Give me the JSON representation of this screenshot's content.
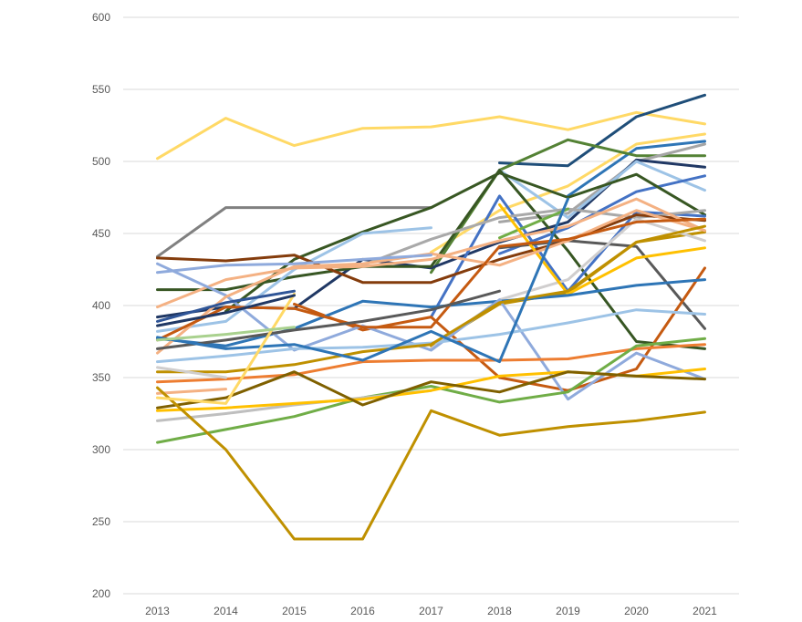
{
  "chart_data": {
    "type": "line",
    "title": "",
    "xlabel": "",
    "ylabel": "",
    "ylim": [
      200,
      600
    ],
    "yticks": [
      200,
      250,
      300,
      350,
      400,
      450,
      500,
      550,
      600
    ],
    "ytick_labels": [
      "200",
      "250",
      "300",
      "350",
      "400",
      "450",
      "500",
      "550",
      "600"
    ],
    "x": [
      "2013",
      "2014",
      "2015",
      "2016",
      "2017",
      "2018",
      "2019",
      "2020",
      "2021"
    ],
    "grid": true,
    "legend": "none",
    "series": [
      {
        "color": "#ffd966",
        "values": [
          502,
          530,
          511,
          523,
          524,
          531,
          522,
          534,
          526
        ]
      },
      {
        "color": "#808080",
        "values": [
          434,
          468,
          468,
          468,
          468,
          null,
          null,
          null,
          null
        ]
      },
      {
        "color": "#1f4e79",
        "values": [
          null,
          null,
          null,
          null,
          null,
          499,
          497,
          531,
          546
        ]
      },
      {
        "color": "#ffd966",
        "values": [
          null,
          null,
          null,
          null,
          437,
          466,
          483,
          512,
          519
        ]
      },
      {
        "color": "#2e75b6",
        "values": [
          null,
          null,
          null,
          null,
          null,
          null,
          476,
          509,
          514
        ]
      },
      {
        "color": "#548235",
        "values": [
          null,
          null,
          null,
          null,
          423,
          494,
          515,
          504,
          504
        ]
      },
      {
        "color": "#a5a5a5",
        "values": [
          null,
          null,
          null,
          null,
          null,
          458,
          464,
          500,
          512
        ]
      },
      {
        "color": "#203864",
        "values": [
          392,
          399,
          398,
          432,
          426,
          444,
          458,
          501,
          496
        ]
      },
      {
        "color": "#9dc3e6",
        "values": [
          null,
          null,
          null,
          null,
          null,
          494,
          461,
          500,
          480
        ]
      },
      {
        "color": "#4472c4",
        "values": [
          null,
          null,
          null,
          null,
          null,
          436,
          454,
          479,
          490
        ]
      },
      {
        "color": "#375623",
        "values": [
          411,
          411,
          420,
          427,
          427,
          494,
          438,
          375,
          370
        ]
      },
      {
        "color": "#385723",
        "values": [
          null,
          396,
          432,
          451,
          468,
          492,
          475,
          491,
          463
        ]
      },
      {
        "color": "#4472c4",
        "values": [
          null,
          null,
          null,
          null,
          392,
          476,
          410,
          465,
          462
        ]
      },
      {
        "color": "#595959",
        "values": [
          null,
          null,
          null,
          null,
          null,
          440,
          445,
          441,
          384
        ]
      },
      {
        "color": "#c55a11",
        "values": [
          null,
          null,
          401,
          383,
          392,
          350,
          341,
          356,
          426
        ]
      },
      {
        "color": "#9dc3e6",
        "values": [
          382,
          389,
          425,
          450,
          454,
          null,
          null,
          null,
          null
        ]
      },
      {
        "color": "#a9a9a9",
        "values": [
          null,
          null,
          null,
          428,
          446,
          461,
          467,
          461,
          466
        ]
      },
      {
        "color": "#843c0c",
        "values": [
          433,
          431,
          435,
          416,
          416,
          432,
          445,
          463,
          459
        ]
      },
      {
        "color": "#f4b183",
        "values": [
          399,
          418,
          426,
          427,
          432,
          445,
          455,
          474,
          452
        ]
      },
      {
        "color": "#70ad47",
        "values": [
          null,
          null,
          null,
          null,
          null,
          447,
          467,
          null,
          null
        ]
      },
      {
        "color": "#bf9000",
        "values": [
          null,
          null,
          null,
          null,
          372,
          401,
          409,
          444,
          451
        ]
      },
      {
        "color": "#d0cece",
        "values": [
          null,
          null,
          null,
          null,
          370,
          404,
          418,
          460,
          445
        ]
      },
      {
        "color": "#ffc000",
        "values": [
          null,
          null,
          null,
          null,
          null,
          470,
          408,
          433,
          440
        ]
      },
      {
        "color": "#2e75b6",
        "values": [
          377,
          372,
          384,
          403,
          399,
          403,
          407,
          414,
          418
        ]
      },
      {
        "color": "#8faadc",
        "values": [
          429,
          407,
          369,
          386,
          369,
          404,
          335,
          367,
          349
        ]
      },
      {
        "color": "#9dc3e6",
        "values": [
          361,
          365,
          370,
          371,
          374,
          380,
          388,
          397,
          394
        ]
      },
      {
        "color": "#f4b183",
        "values": [
          367,
          406,
          427,
          429,
          436,
          428,
          445,
          466,
          452
        ]
      },
      {
        "color": "#c55a11",
        "values": [
          376,
          399,
          398,
          385,
          385,
          441,
          446,
          458,
          460
        ]
      },
      {
        "color": "#ed7d31",
        "values": [
          347,
          349,
          352,
          361,
          362,
          362,
          363,
          370,
          373
        ]
      },
      {
        "color": "#bf9000",
        "values": [
          354,
          354,
          359,
          368,
          373,
          402,
          410,
          444,
          455
        ]
      },
      {
        "color": "#f4b183",
        "values": [
          339,
          342,
          null,
          null,
          null,
          null,
          null,
          null,
          null
        ]
      },
      {
        "color": "#2f5597",
        "values": [
          389,
          402,
          410,
          null,
          null,
          null,
          null,
          null,
          null
        ]
      },
      {
        "color": "#8faadc",
        "values": [
          423,
          428,
          429,
          432,
          435,
          null,
          null,
          null,
          null
        ]
      },
      {
        "color": "#595959",
        "values": [
          370,
          376,
          383,
          389,
          397,
          410,
          null,
          null,
          null
        ]
      },
      {
        "color": "#2e75b6",
        "values": [
          378,
          370,
          373,
          362,
          382,
          361,
          474,
          null,
          null
        ]
      },
      {
        "color": "#70ad47",
        "values": [
          305,
          314,
          323,
          336,
          344,
          333,
          340,
          372,
          377
        ]
      },
      {
        "color": "#bfbfbf",
        "values": [
          320,
          325,
          331,
          336,
          341,
          null,
          null,
          null,
          null
        ]
      },
      {
        "color": "#ffc000",
        "values": [
          327,
          329,
          332,
          335,
          341,
          351,
          354,
          351,
          356
        ]
      },
      {
        "color": "#7f6000",
        "values": [
          329,
          336,
          354,
          331,
          347,
          340,
          354,
          351,
          349
        ]
      },
      {
        "color": "#bf9000",
        "values": [
          343,
          300,
          238,
          238,
          327,
          310,
          316,
          320,
          326
        ]
      },
      {
        "color": "#ffd966",
        "values": [
          336,
          332,
          408,
          null,
          null,
          null,
          null,
          null,
          null
        ]
      },
      {
        "color": "#d0cece",
        "values": [
          357,
          350,
          null,
          null,
          null,
          null,
          null,
          null,
          null
        ]
      },
      {
        "color": "#a9d18e",
        "values": [
          376,
          380,
          385,
          null,
          null,
          null,
          null,
          null,
          null
        ]
      },
      {
        "color": "#203864",
        "values": [
          386,
          395,
          407,
          null,
          null,
          null,
          null,
          null,
          null
        ]
      }
    ]
  }
}
